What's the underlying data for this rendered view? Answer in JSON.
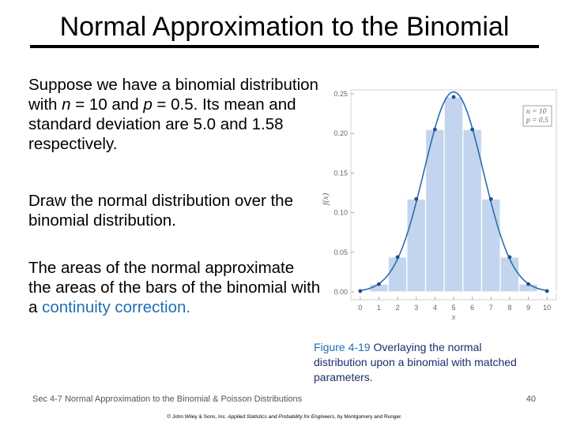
{
  "slide": {
    "title": "Normal Approximation to the Binomial",
    "p1_a": "Suppose we have a binomial distribution with ",
    "p1_n": "n",
    "p1_b": " = 10 and ",
    "p1_p": "p",
    "p1_c": " = 0.5. Its mean and standard deviation are 5.0 and 1.58 respectively.",
    "p2": "Draw the normal distribution over the binomial distribution.",
    "p3_a": "The areas of the normal approximate the areas of the bars of the binomial with a ",
    "p3_link": "continuity correction.",
    "caption_fig": "Figure 4-19",
    "caption_text": "  Overlaying the normal distribution upon a binomial with matched parameters.",
    "footer": "Sec 4-7 Normal Approximation to the Binomial & Poisson Distributions",
    "page_number": "40",
    "credit_a": "© John Wiley & Sons, Inc.  ",
    "credit_book": "Applied Statistics and Probability for Engineers",
    "credit_b": ", by Montgomery and Runger."
  },
  "colors": {
    "bar": "#c3d5ee",
    "curve": "#2a6cb0",
    "point": "#1f4f8a",
    "accent": "#1f6fb2"
  },
  "chart_data": {
    "type": "bar",
    "categories": [
      0,
      1,
      2,
      3,
      4,
      5,
      6,
      7,
      8,
      9,
      10
    ],
    "values": [
      0.001,
      0.0098,
      0.0439,
      0.1172,
      0.2051,
      0.2461,
      0.2051,
      0.1172,
      0.0439,
      0.0098,
      0.001
    ],
    "overlay": {
      "type": "line",
      "distribution": "normal",
      "mean": 5.0,
      "sd": 1.58
    },
    "xlabel": "x",
    "ylabel": "f(x)",
    "xlim": [
      -0.5,
      10.5
    ],
    "ylim": [
      -0.01,
      0.255
    ],
    "xticks": [
      "0",
      "1",
      "2",
      "3",
      "4",
      "5",
      "6",
      "7",
      "8",
      "9",
      "10"
    ],
    "yticks": [
      "0.00",
      "0.05",
      "0.10",
      "0.15",
      "0.20",
      "0.25"
    ],
    "legend": [
      "n = 10",
      "p = 0.5"
    ],
    "legend_position": "top-right"
  }
}
